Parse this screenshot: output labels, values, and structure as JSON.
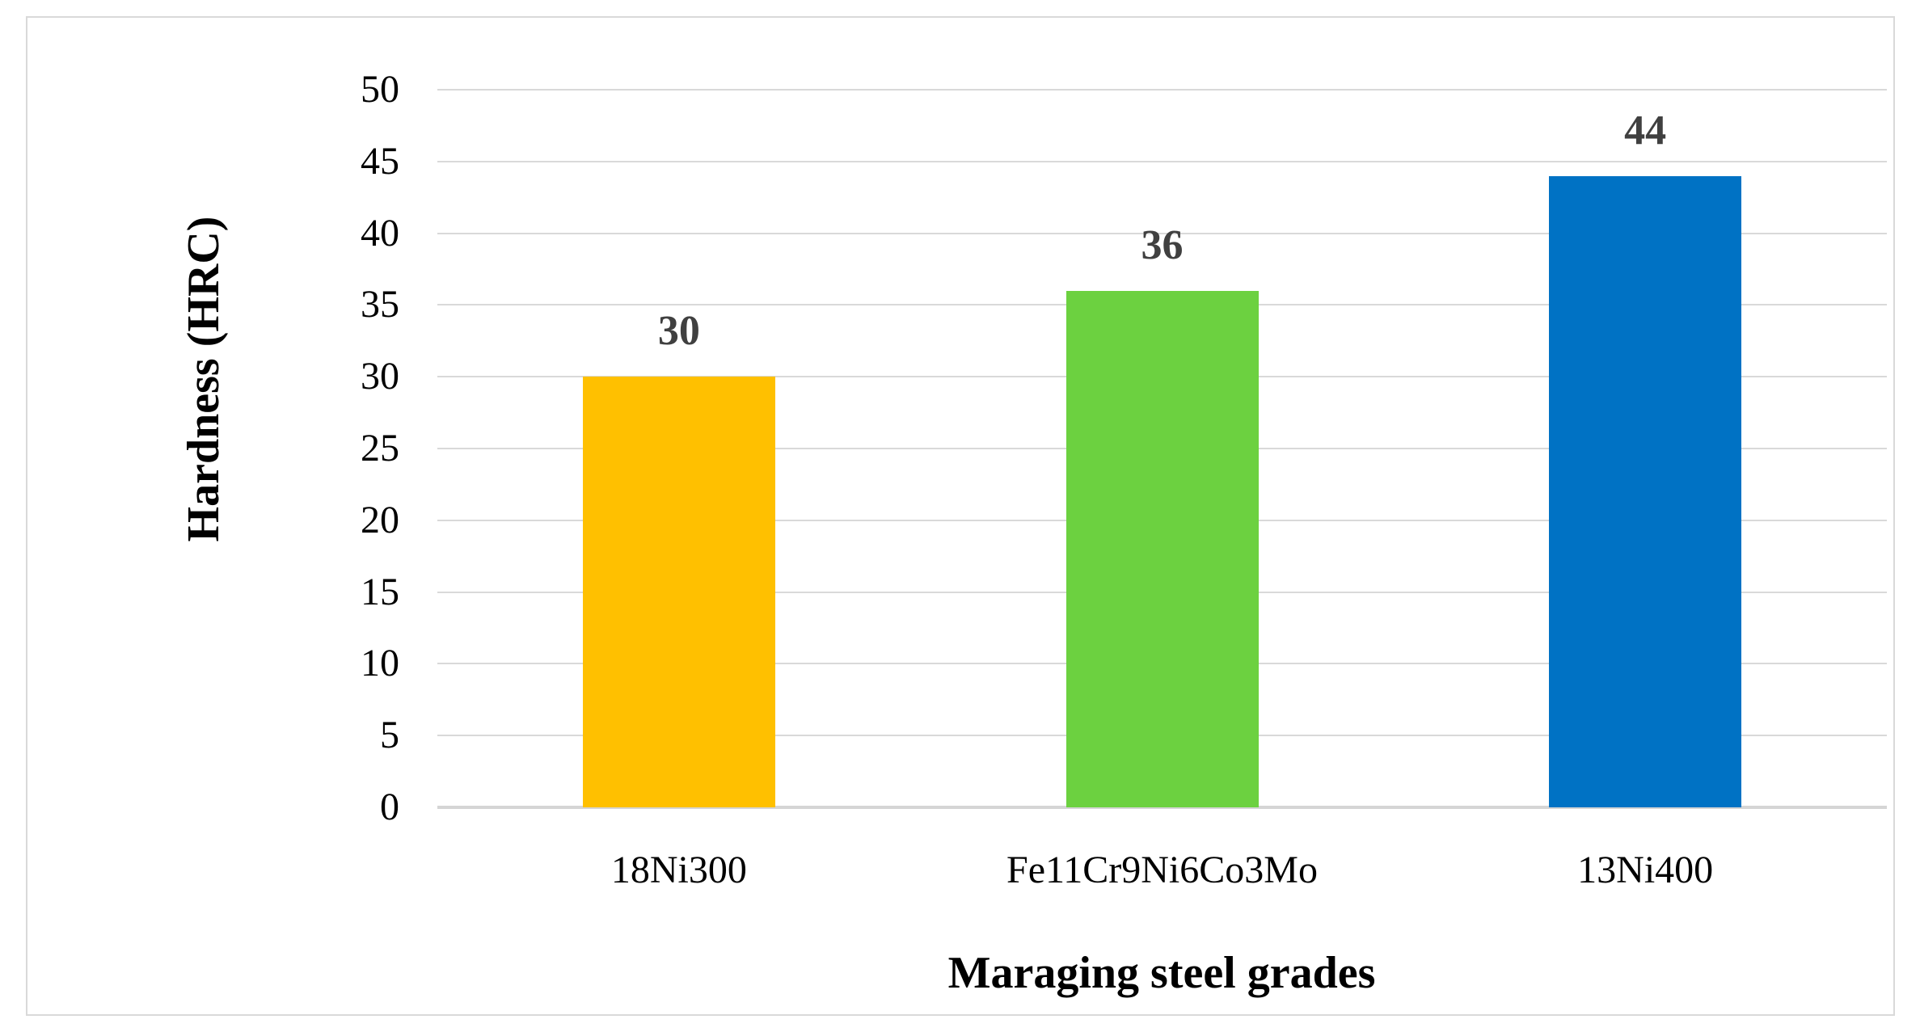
{
  "chart_data": {
    "type": "bar",
    "title": "",
    "xlabel": "Maraging steel grades",
    "ylabel": "Hardness (HRC)",
    "categories": [
      "18Ni300",
      "Fe11Cr9Ni6Co3Mo",
      "13Ni400"
    ],
    "values": [
      30,
      36,
      44
    ],
    "data_labels": [
      "30",
      "36",
      "44"
    ],
    "bar_colors": [
      "#FFC000",
      "#6CD140",
      "#0072C4"
    ],
    "ylim": [
      0,
      50
    ],
    "yticks": [
      0,
      5,
      10,
      15,
      20,
      25,
      30,
      35,
      40,
      45,
      50
    ],
    "grid": "horizontal",
    "legend": "none"
  },
  "styles": {
    "background": "#FFFFFF",
    "panel_border_color": "#D9D9D9",
    "gridline_color": "#D9D9D9",
    "axis_line_color": "#D5D5D5",
    "value_label_color": "#404040",
    "tick_label_color": "#000000"
  }
}
